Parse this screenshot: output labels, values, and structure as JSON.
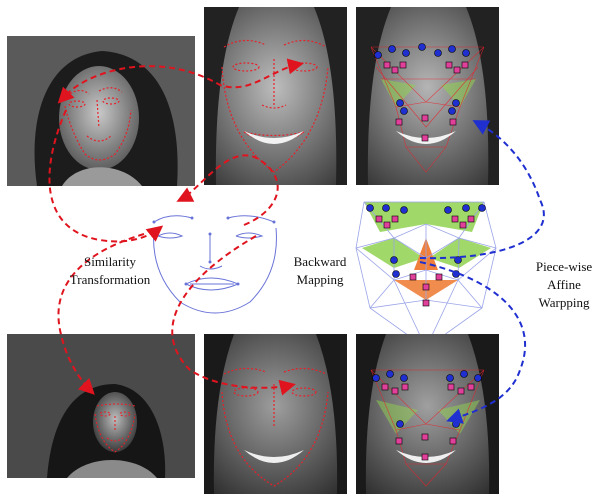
{
  "labels": {
    "similarity_line1": "Similarity",
    "similarity_line2": "Transformation",
    "backward_line1": "Backward",
    "backward_line2": "Mapping",
    "piecewise_line1": "Piece-wise",
    "piecewise_line2": "Affine",
    "piecewise_line3": "Warpping"
  },
  "colors": {
    "landmark_line": "#e8202a",
    "landmark_point_blue": "#1f2fd0",
    "landmark_point_pink": "#e0409a",
    "arrow_red": "#e0141e",
    "arrow_blue": "#1f2fd0",
    "mesh_line": "#9aa4e8",
    "region_green": "#8fd14f",
    "region_orange": "#f07f3c",
    "photo_dark": "#2a2a2a"
  }
}
